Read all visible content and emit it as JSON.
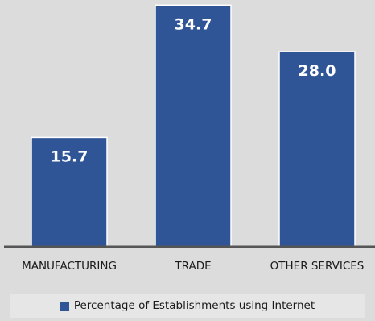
{
  "chart_data": {
    "type": "bar",
    "categories": [
      "MANUFACTURING",
      "TRADE",
      "OTHER SERVICES"
    ],
    "series": [
      {
        "name": "Percentage of Establishments using Internet",
        "values": [
          15.7,
          34.7,
          28.0
        ],
        "value_labels": [
          "15.7",
          "34.7",
          "28.0"
        ]
      }
    ],
    "ylim": [
      0,
      35.2
    ],
    "grid": false,
    "legend_position": "bottom"
  },
  "colors": {
    "background": "#dcdcdc",
    "bar": "#2f5597",
    "bar_edge": "#ffffff",
    "axis": "#555555",
    "value_label": "#ffffff",
    "category_label": "#1a1a1a",
    "legend_background": "#e6e6e6"
  }
}
